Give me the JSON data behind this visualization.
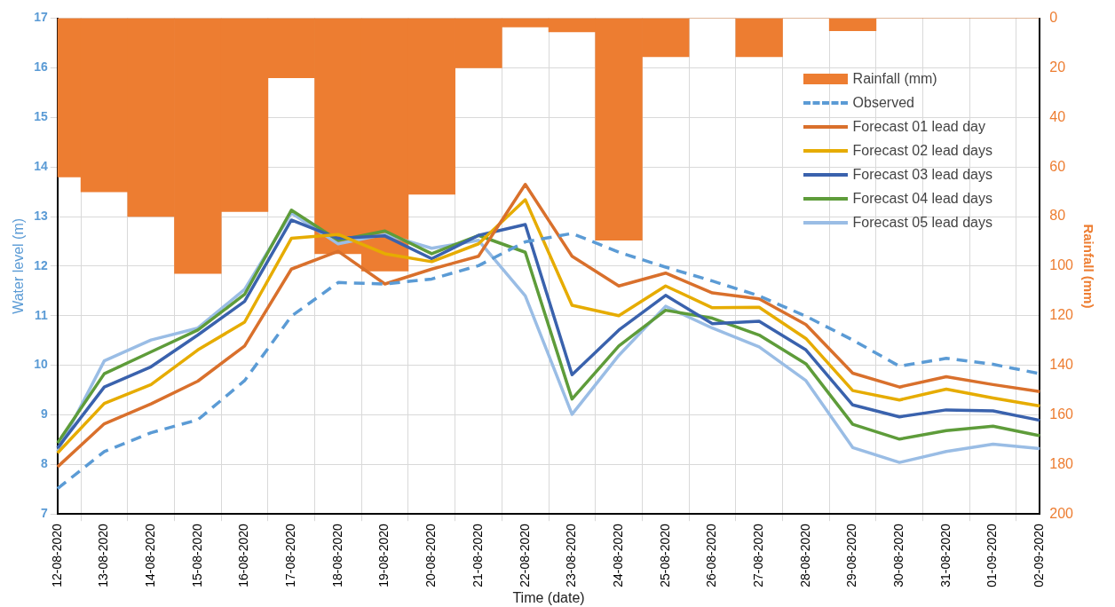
{
  "chart_data": {
    "type": "line",
    "xlabel": "Time (date)",
    "ylabel": "Water level (m)",
    "y2label": "Rainfall (mm)",
    "categories": [
      "12-08-2020",
      "13-08-2020",
      "14-08-2020",
      "15-08-2020",
      "16-08-2020",
      "17-08-2020",
      "18-08-2020",
      "19-08-2020",
      "20-08-2020",
      "21-08-2020",
      "22-08-2020",
      "23-08-2020",
      "24-08-2020",
      "25-08-2020",
      "26-08-2020",
      "27-08-2020",
      "28-08-2020",
      "29-08-2020",
      "30-08-2020",
      "31-08-2020",
      "01-09-2020",
      "02-09-2020"
    ],
    "series": [
      {
        "name": "Rainfall (mm)",
        "type": "bar",
        "axis": "y2",
        "color": "#ed7d31",
        "values": [
          64,
          70,
          80,
          103,
          78,
          24,
          95,
          102,
          71,
          20,
          3.5,
          5.5,
          89.5,
          15.5,
          0,
          15.5,
          0,
          5,
          0,
          0,
          0,
          0
        ]
      },
      {
        "name": "Observed",
        "color": "#5b9bd5",
        "line_style": "dashed",
        "values": [
          7.51,
          8.26,
          8.64,
          8.9,
          9.69,
          10.99,
          11.67,
          11.64,
          11.74,
          12.01,
          12.49,
          12.66,
          12.28,
          11.98,
          11.7,
          11.4,
          10.99,
          10.51,
          9.98,
          10.14,
          10.02,
          9.83
        ]
      },
      {
        "name": "Forecast 01 lead day",
        "color": "#d9702c",
        "values": [
          7.95,
          8.82,
          9.22,
          9.68,
          10.39,
          11.94,
          12.3,
          11.64,
          11.94,
          12.2,
          13.65,
          12.2,
          11.6,
          11.86,
          11.46,
          11.34,
          10.82,
          9.84,
          9.56,
          9.77,
          9.61,
          9.47
        ]
      },
      {
        "name": "Forecast 02 lead days",
        "color": "#e6ac00",
        "values": [
          8.23,
          9.23,
          9.61,
          10.31,
          10.87,
          12.56,
          12.64,
          12.25,
          12.09,
          12.45,
          13.34,
          11.21,
          11.0,
          11.6,
          11.16,
          11.17,
          10.54,
          9.49,
          9.3,
          9.52,
          9.34,
          9.18
        ]
      },
      {
        "name": "Forecast 03 lead days",
        "color": "#3a62ad",
        "values": [
          8.33,
          9.56,
          9.97,
          10.61,
          11.29,
          12.93,
          12.56,
          12.61,
          12.15,
          12.62,
          12.84,
          9.81,
          10.71,
          11.41,
          10.84,
          10.89,
          10.31,
          9.2,
          8.96,
          9.1,
          9.08,
          8.89
        ]
      },
      {
        "name": "Forecast 04 lead days",
        "color": "#5e9c3a",
        "values": [
          8.43,
          9.83,
          10.27,
          10.71,
          11.43,
          13.13,
          12.52,
          12.71,
          12.25,
          12.62,
          12.28,
          9.32,
          10.39,
          11.11,
          10.95,
          10.61,
          10.03,
          8.81,
          8.51,
          8.68,
          8.77,
          8.58
        ]
      },
      {
        "name": "Forecast 05 lead days",
        "color": "#9abde5",
        "values": [
          8.26,
          10.09,
          10.51,
          10.75,
          11.53,
          13.07,
          12.45,
          12.64,
          12.36,
          12.52,
          11.4,
          9.01,
          10.2,
          11.19,
          10.75,
          10.37,
          9.69,
          8.34,
          8.04,
          8.26,
          8.41,
          8.32
        ]
      }
    ],
    "ylim": [
      7,
      17
    ],
    "yticks": [
      7,
      8,
      9,
      10,
      11,
      12,
      13,
      14,
      15,
      16,
      17
    ],
    "y2lim": [
      200,
      0
    ],
    "y2ticks": [
      0,
      20,
      40,
      60,
      80,
      100,
      120,
      140,
      160,
      180,
      200
    ],
    "grid": true,
    "legend": "top right",
    "marker": "none"
  }
}
